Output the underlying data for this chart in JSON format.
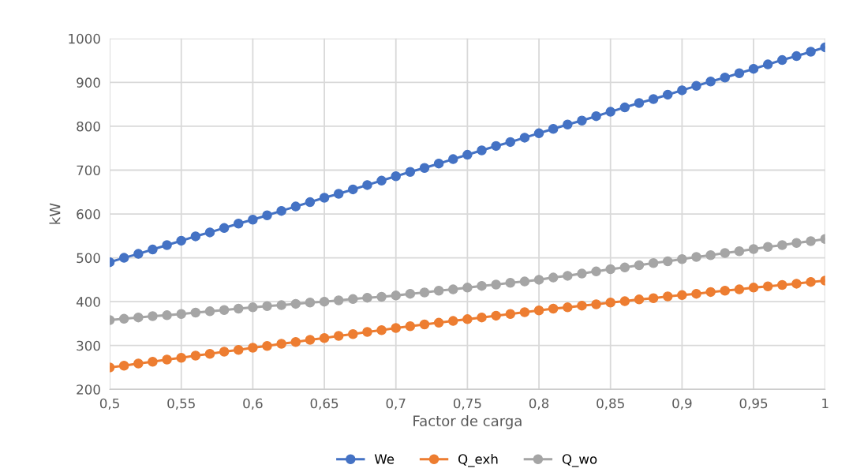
{
  "chart_data": {
    "type": "line",
    "xlabel": "Factor de carga",
    "ylabel": "kW",
    "x": [
      0.5,
      0.51,
      0.52,
      0.53,
      0.54,
      0.55,
      0.56,
      0.57,
      0.58,
      0.59,
      0.6,
      0.61,
      0.62,
      0.63,
      0.64,
      0.65,
      0.66,
      0.67,
      0.68,
      0.69,
      0.7,
      0.71,
      0.72,
      0.73,
      0.74,
      0.75,
      0.76,
      0.77,
      0.78,
      0.79,
      0.8,
      0.81,
      0.82,
      0.83,
      0.84,
      0.85,
      0.86,
      0.87,
      0.88,
      0.89,
      0.9,
      0.91,
      0.92,
      0.93,
      0.94,
      0.95,
      0.96,
      0.97,
      0.98,
      0.99,
      1.0
    ],
    "series": [
      {
        "name": "We",
        "color": "#4472c4",
        "values": [
          490,
          500,
          509,
          519,
          529,
          539,
          549,
          558,
          568,
          578,
          587,
          597,
          607,
          617,
          627,
          637,
          646,
          656,
          666,
          676,
          686,
          696,
          705,
          715,
          725,
          735,
          745,
          755,
          764,
          774,
          784,
          794,
          804,
          813,
          823,
          833,
          843,
          853,
          862,
          872,
          882,
          892,
          902,
          911,
          921,
          931,
          941,
          951,
          960,
          970,
          980
        ]
      },
      {
        "name": "Q_exh",
        "color": "#ed7d31",
        "values": [
          250,
          254,
          259,
          263,
          268,
          272,
          277,
          281,
          286,
          290,
          295,
          299,
          304,
          308,
          313,
          317,
          322,
          326,
          331,
          335,
          340,
          344,
          348,
          352,
          356,
          360,
          364,
          368,
          372,
          376,
          380,
          384,
          387,
          391,
          394,
          398,
          401,
          405,
          408,
          412,
          415,
          418,
          422,
          425,
          428,
          432,
          435,
          438,
          441,
          445,
          448
        ]
      },
      {
        "name": "Q_wo",
        "color": "#a5a5a5",
        "values": [
          358,
          361,
          364,
          367,
          369,
          372,
          375,
          378,
          381,
          384,
          387,
          390,
          392,
          395,
          398,
          400,
          403,
          406,
          409,
          411,
          414,
          418,
          421,
          425,
          428,
          432,
          436,
          439,
          443,
          446,
          450,
          455,
          459,
          464,
          469,
          474,
          478,
          483,
          488,
          492,
          497,
          502,
          506,
          511,
          515,
          520,
          525,
          529,
          534,
          538,
          543
        ]
      }
    ],
    "xlim": [
      0.5,
      1.0
    ],
    "xticks": [
      {
        "value": 0.5,
        "label": "0,5"
      },
      {
        "value": 0.55,
        "label": "0,55"
      },
      {
        "value": 0.6,
        "label": "0,6"
      },
      {
        "value": 0.65,
        "label": "0,65"
      },
      {
        "value": 0.7,
        "label": "0,7"
      },
      {
        "value": 0.75,
        "label": "0,75"
      },
      {
        "value": 0.8,
        "label": "0,8"
      },
      {
        "value": 0.85,
        "label": "0,85"
      },
      {
        "value": 0.9,
        "label": "0,9"
      },
      {
        "value": 0.95,
        "label": "0,95"
      },
      {
        "value": 1.0,
        "label": "1"
      }
    ],
    "ylim": [
      200,
      1000
    ],
    "yticks": [
      200,
      300,
      400,
      500,
      600,
      700,
      800,
      900,
      1000
    ],
    "grid": true,
    "legend": "bottom",
    "marker": "circle",
    "line_style": "solid"
  }
}
